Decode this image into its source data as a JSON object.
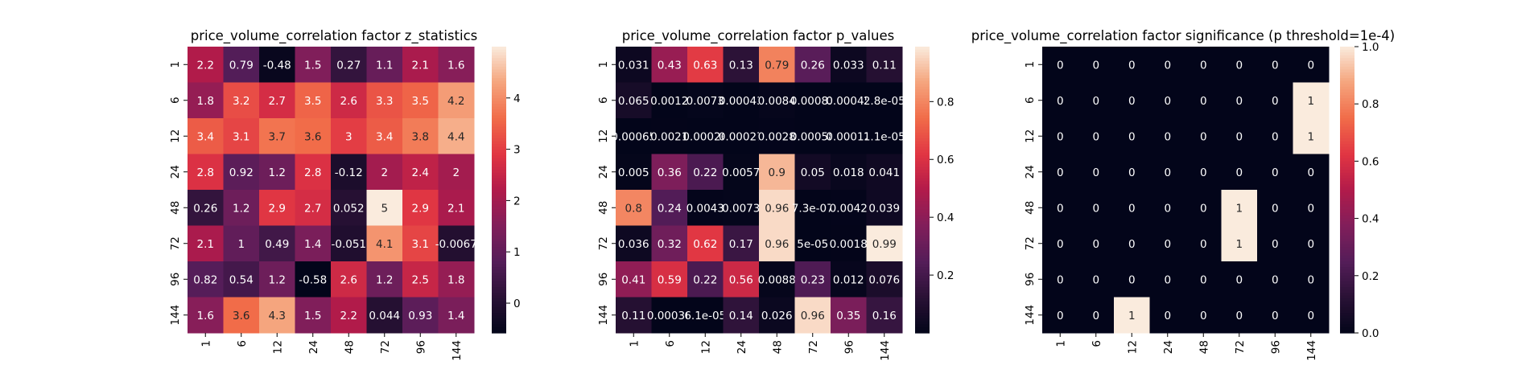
{
  "figure": {
    "background": "#ffffff",
    "colormap": "rocket"
  },
  "chart_data": [
    {
      "type": "heatmap",
      "title": "price_volume_correlation factor z_statistics",
      "x_tick_labels": [
        "1",
        "6",
        "12",
        "24",
        "48",
        "72",
        "96",
        "144"
      ],
      "y_tick_labels": [
        "1",
        "6",
        "12",
        "24",
        "48",
        "72",
        "96",
        "144"
      ],
      "values": [
        [
          2.2,
          0.79,
          -0.48,
          1.5,
          0.27,
          1.1,
          2.1,
          1.6
        ],
        [
          1.8,
          3.2,
          2.7,
          3.5,
          2.6,
          3.3,
          3.5,
          4.2
        ],
        [
          3.4,
          3.1,
          3.7,
          3.6,
          3.0,
          3.4,
          3.8,
          4.4
        ],
        [
          2.8,
          0.92,
          1.2,
          2.8,
          -0.12,
          2.0,
          2.4,
          2.0
        ],
        [
          0.26,
          1.2,
          2.9,
          2.7,
          0.052,
          5.0,
          2.9,
          2.1
        ],
        [
          2.1,
          1.0,
          0.49,
          1.4,
          -0.051,
          4.1,
          3.1,
          -0.0067
        ],
        [
          0.82,
          0.54,
          1.2,
          -0.58,
          2.6,
          1.2,
          2.5,
          1.8
        ],
        [
          1.6,
          3.6,
          4.3,
          1.5,
          2.2,
          0.044,
          0.93,
          1.4
        ]
      ],
      "annotations": [
        [
          "2.2",
          "0.79",
          "-0.48",
          "1.5",
          "0.27",
          "1.1",
          "2.1",
          "1.6"
        ],
        [
          "1.8",
          "3.2",
          "2.7",
          "3.5",
          "2.6",
          "3.3",
          "3.5",
          "4.2"
        ],
        [
          "3.4",
          "3.1",
          "3.7",
          "3.6",
          "3",
          "3.4",
          "3.8",
          "4.4"
        ],
        [
          "2.8",
          "0.92",
          "1.2",
          "2.8",
          "-0.12",
          "2",
          "2.4",
          "2"
        ],
        [
          "0.26",
          "1.2",
          "2.9",
          "2.7",
          "0.052",
          "5",
          "2.9",
          "2.1"
        ],
        [
          "2.1",
          "1",
          "0.49",
          "1.4",
          "-0.051",
          "4.1",
          "3.1",
          "-0.0067"
        ],
        [
          "0.82",
          "0.54",
          "1.2",
          "-0.58",
          "2.6",
          "1.2",
          "2.5",
          "1.8"
        ],
        [
          "1.6",
          "3.6",
          "4.3",
          "1.5",
          "2.2",
          "0.044",
          "0.93",
          "1.4"
        ]
      ],
      "color_range": [
        -0.58,
        5.0
      ],
      "colorbar_ticks": [
        0,
        1,
        2,
        3,
        4
      ],
      "colorbar_tick_labels": [
        "0",
        "1",
        "2",
        "3",
        "4"
      ]
    },
    {
      "type": "heatmap",
      "title": "price_volume_correlation factor p_values",
      "x_tick_labels": [
        "1",
        "6",
        "12",
        "24",
        "48",
        "72",
        "96",
        "144"
      ],
      "y_tick_labels": [
        "1",
        "6",
        "12",
        "24",
        "48",
        "72",
        "96",
        "144"
      ],
      "values": [
        [
          0.031,
          0.43,
          0.63,
          0.13,
          0.79,
          0.26,
          0.033,
          0.11
        ],
        [
          0.065,
          0.0012,
          0.0073,
          0.00043,
          0.0084,
          0.00083,
          0.00045,
          2.8e-05
        ],
        [
          0.00065,
          0.0021,
          0.00026,
          0.00027,
          0.0028,
          0.00058,
          0.00012,
          1.1e-05
        ],
        [
          0.005,
          0.36,
          0.22,
          0.0057,
          0.9,
          0.05,
          0.018,
          0.041
        ],
        [
          0.8,
          0.24,
          0.0043,
          0.0073,
          0.96,
          7.3e-07,
          0.0042,
          0.039
        ],
        [
          0.036,
          0.32,
          0.62,
          0.17,
          0.96,
          5e-05,
          0.0018,
          0.99
        ],
        [
          0.41,
          0.59,
          0.22,
          0.56,
          0.0088,
          0.23,
          0.012,
          0.076
        ],
        [
          0.11,
          0.00036,
          6.1e-05,
          0.14,
          0.026,
          0.96,
          0.35,
          0.16
        ]
      ],
      "annotations": [
        [
          "0.031",
          "0.43",
          "0.63",
          "0.13",
          "0.79",
          "0.26",
          "0.033",
          "0.11"
        ],
        [
          "0.065",
          "0.0012",
          "0.0073",
          "0.00043",
          "0.0084",
          "0.00083",
          "0.00045",
          "2.8e-05"
        ],
        [
          "0.00065",
          "0.0021",
          "0.00026",
          "0.00027",
          "0.0028",
          "0.00058",
          "0.00012",
          "1.1e-05"
        ],
        [
          "0.005",
          "0.36",
          "0.22",
          "0.0057",
          "0.9",
          "0.05",
          "0.018",
          "0.041"
        ],
        [
          "0.8",
          "0.24",
          "0.0043",
          "0.0073",
          "0.96",
          "7.3e-07",
          "0.0042",
          "0.039"
        ],
        [
          "0.036",
          "0.32",
          "0.62",
          "0.17",
          "0.96",
          "5e-05",
          "0.0018",
          "0.99"
        ],
        [
          "0.41",
          "0.59",
          "0.22",
          "0.56",
          "0.0088",
          "0.23",
          "0.012",
          "0.076"
        ],
        [
          "0.11",
          "0.00036",
          "6.1e-05",
          "0.14",
          "0.026",
          "0.96",
          "0.35",
          "0.16"
        ]
      ],
      "color_range": [
        0.0,
        0.99
      ],
      "colorbar_ticks": [
        0.2,
        0.4,
        0.6,
        0.8
      ],
      "colorbar_tick_labels": [
        "0.2",
        "0.4",
        "0.6",
        "0.8"
      ]
    },
    {
      "type": "heatmap",
      "title": "price_volume_correlation factor significance (p threshold=1e-4)",
      "x_tick_labels": [
        "1",
        "6",
        "12",
        "24",
        "48",
        "72",
        "96",
        "144"
      ],
      "y_tick_labels": [
        "1",
        "6",
        "12",
        "24",
        "48",
        "72",
        "96",
        "144"
      ],
      "values": [
        [
          0,
          0,
          0,
          0,
          0,
          0,
          0,
          0
        ],
        [
          0,
          0,
          0,
          0,
          0,
          0,
          0,
          1
        ],
        [
          0,
          0,
          0,
          0,
          0,
          0,
          0,
          1
        ],
        [
          0,
          0,
          0,
          0,
          0,
          0,
          0,
          0
        ],
        [
          0,
          0,
          0,
          0,
          0,
          1,
          0,
          0
        ],
        [
          0,
          0,
          0,
          0,
          0,
          1,
          0,
          0
        ],
        [
          0,
          0,
          0,
          0,
          0,
          0,
          0,
          0
        ],
        [
          0,
          0,
          1,
          0,
          0,
          0,
          0,
          0
        ]
      ],
      "annotations": [
        [
          "0",
          "0",
          "0",
          "0",
          "0",
          "0",
          "0",
          "0"
        ],
        [
          "0",
          "0",
          "0",
          "0",
          "0",
          "0",
          "0",
          "1"
        ],
        [
          "0",
          "0",
          "0",
          "0",
          "0",
          "0",
          "0",
          "1"
        ],
        [
          "0",
          "0",
          "0",
          "0",
          "0",
          "0",
          "0",
          "0"
        ],
        [
          "0",
          "0",
          "0",
          "0",
          "0",
          "1",
          "0",
          "0"
        ],
        [
          "0",
          "0",
          "0",
          "0",
          "0",
          "1",
          "0",
          "0"
        ],
        [
          "0",
          "0",
          "0",
          "0",
          "0",
          "0",
          "0",
          "0"
        ],
        [
          "0",
          "0",
          "1",
          "0",
          "0",
          "0",
          "0",
          "0"
        ]
      ],
      "color_range": [
        0.0,
        1.0
      ],
      "colorbar_ticks": [
        0.0,
        0.2,
        0.4,
        0.6,
        0.8,
        1.0
      ],
      "colorbar_tick_labels": [
        "0.0",
        "0.2",
        "0.4",
        "0.6",
        "0.8",
        "1.0"
      ]
    }
  ]
}
